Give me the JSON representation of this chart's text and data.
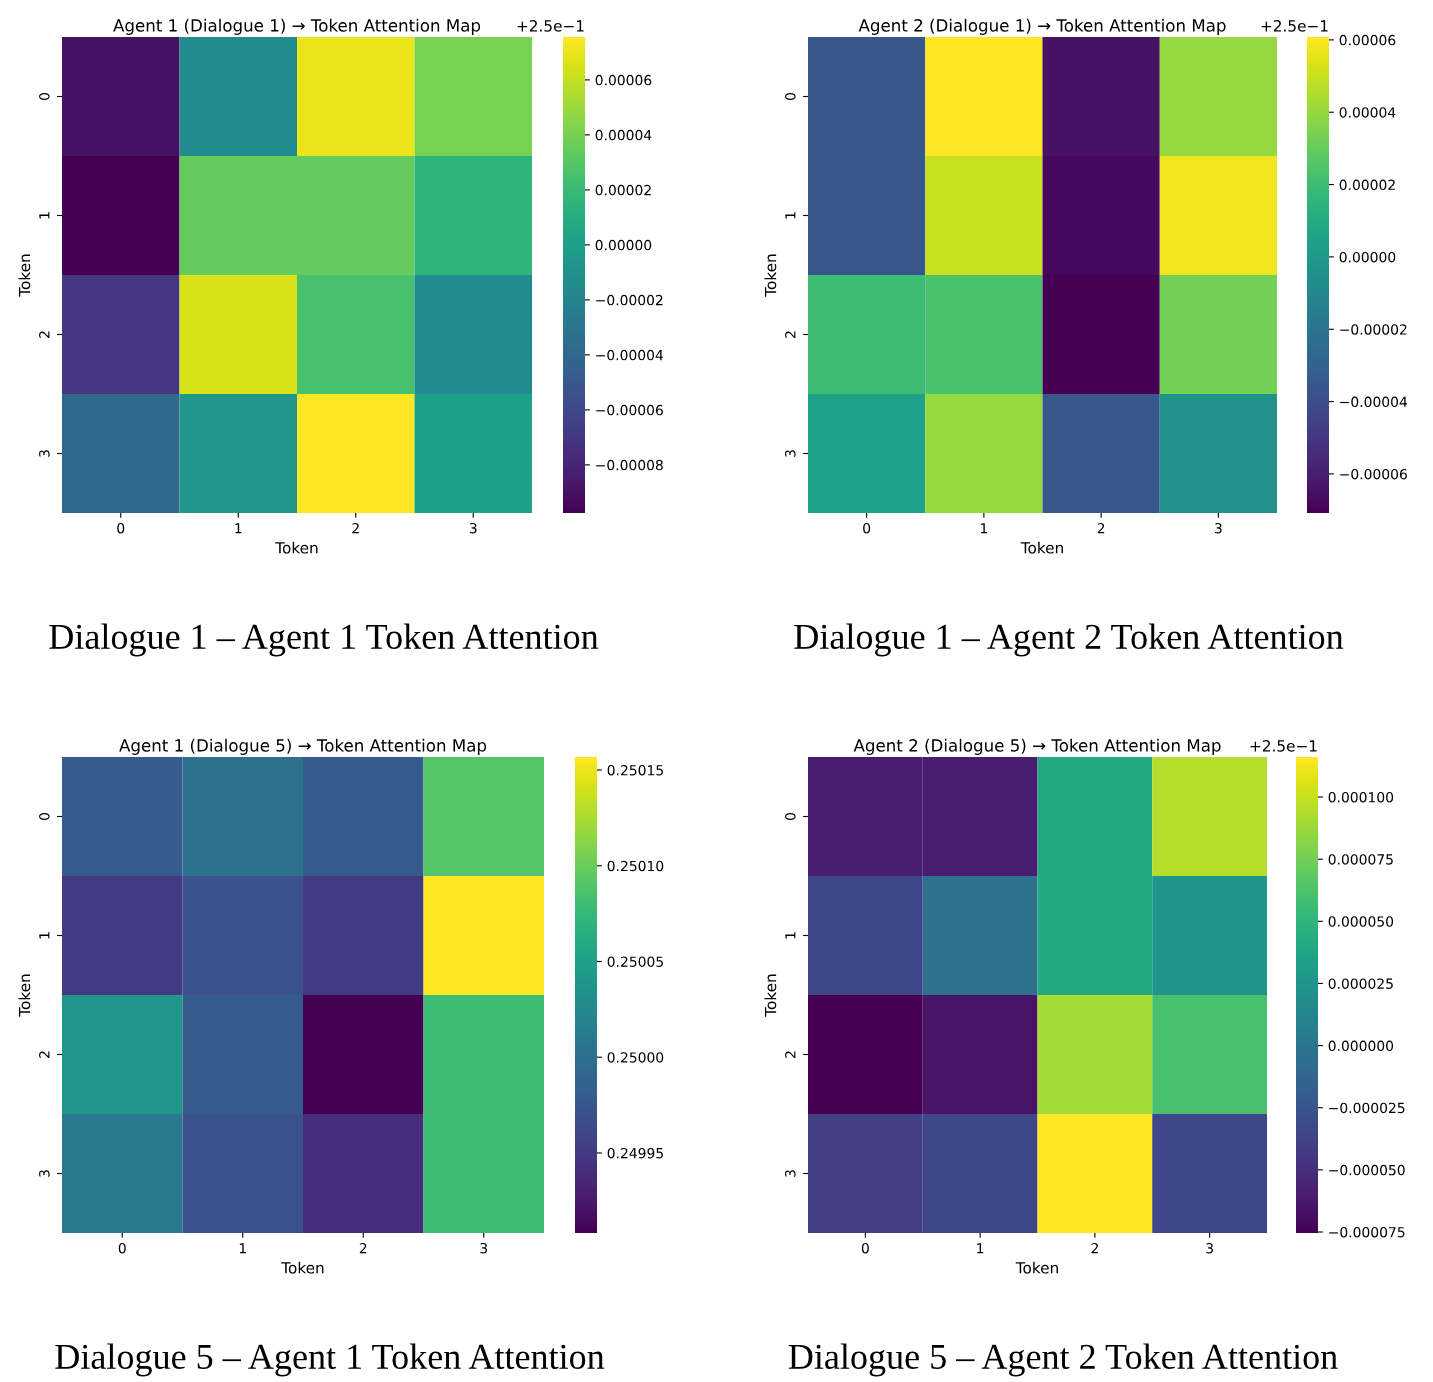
{
  "chart_data": [
    {
      "type": "heatmap",
      "title": "Agent 1 (Dialogue 1) → Token Attention Map",
      "xlabel": "Token",
      "ylabel": "Token",
      "categories": [
        "0",
        "1",
        "2",
        "3"
      ],
      "y_categories": [
        "0",
        "1",
        "2",
        "3"
      ],
      "cells": [
        [
          -9e-05,
          -1.5e-05,
          7e-05,
          4e-05
        ],
        [
          -9.75e-05,
          3.5e-05,
          3.5e-05,
          1.5e-05
        ],
        [
          -7e-05,
          6.5e-05,
          2.5e-05,
          -1.5e-05
        ],
        [
          -4e-05,
          -5e-06,
          7.56e-05,
          0.0
        ]
      ],
      "clim": [
        -9.75e-05,
        7.56e-05
      ],
      "cticks": [
        {
          "value": -8e-05,
          "label": "−0.00008"
        },
        {
          "value": -6e-05,
          "label": "−0.00006"
        },
        {
          "value": -4e-05,
          "label": "−0.00004"
        },
        {
          "value": -2e-05,
          "label": "−0.00002"
        },
        {
          "value": 0.0,
          "label": "0.00000"
        },
        {
          "value": 2e-05,
          "label": "0.00002"
        },
        {
          "value": 4e-05,
          "label": "0.00004"
        },
        {
          "value": 6e-05,
          "label": "0.00006"
        }
      ],
      "annotations": [
        "+2.5e−1",
        "Dialogue 1 – Agent 1 Token Attention"
      ]
    },
    {
      "type": "heatmap",
      "title": "Agent 2 (Dialogue 1) → Token Attention Map",
      "xlabel": "Token",
      "ylabel": "Token",
      "categories": [
        "0",
        "1",
        "2",
        "3"
      ],
      "y_categories": [
        "0",
        "1",
        "2",
        "3"
      ],
      "cells": [
        [
          -3.5e-05,
          6.08e-05,
          -6.5e-05,
          4e-05
        ],
        [
          -3.5e-05,
          5e-05,
          -6.8e-05,
          5.8e-05
        ],
        [
          2e-05,
          2.3e-05,
          -7.08e-05,
          3.3e-05
        ],
        [
          5e-06,
          4e-05,
          -3.5e-05,
          -5e-06
        ]
      ],
      "clim": [
        -7.08e-05,
        6.08e-05
      ],
      "cticks": [
        {
          "value": -6e-05,
          "label": "−0.00006"
        },
        {
          "value": -4e-05,
          "label": "−0.00004"
        },
        {
          "value": -2e-05,
          "label": "−0.00002"
        },
        {
          "value": 0.0,
          "label": "0.00000"
        },
        {
          "value": 2e-05,
          "label": "0.00002"
        },
        {
          "value": 4e-05,
          "label": "0.00004"
        },
        {
          "value": 6e-05,
          "label": "0.00006"
        }
      ],
      "annotations": [
        "+2.5e−1",
        "Dialogue 1 – Agent 2 Token Attention"
      ]
    },
    {
      "type": "heatmap",
      "title": "Agent 1 (Dialogue 5) → Token Attention Map",
      "xlabel": "Token",
      "ylabel": "Token",
      "categories": [
        "0",
        "1",
        "2",
        "3"
      ],
      "y_categories": [
        "0",
        "1",
        "2",
        "3"
      ],
      "cells": [
        [
          0.24998,
          0.25,
          0.24998,
          0.25009
        ],
        [
          0.24995,
          0.24997,
          0.24995,
          0.2501568
        ],
        [
          0.25004,
          0.24998,
          0.2499082,
          0.25008
        ],
        [
          0.25001,
          0.24997,
          0.24994,
          0.25008
        ]
      ],
      "clim": [
        0.2499082,
        0.2501568
      ],
      "cticks": [
        0.24995,
        {
          "value": 0.25,
          "label": "0.25000"
        },
        0.25005,
        {
          "value": 0.2501,
          "label": "0.25010"
        },
        0.25015
      ],
      "annotations": [
        "Dialogue 5 – Agent 1 Token Attention"
      ]
    },
    {
      "type": "heatmap",
      "title": "Agent 2 (Dialogue 5) → Token Attention Map",
      "xlabel": "Token",
      "ylabel": "Token",
      "categories": [
        "0",
        "1",
        "2",
        "3"
      ],
      "y_categories": [
        "0",
        "1",
        "2",
        "3"
      ],
      "cells": [
        [
          -6e-05,
          -6e-05,
          4e-05,
          9.5e-05
        ],
        [
          -3.5e-05,
          -5e-06,
          4e-05,
          2.5e-05
        ],
        [
          -7.54e-05,
          -6.5e-05,
          9e-05,
          6e-05
        ],
        [
          -4e-05,
          -3.5e-05,
          0.0001161,
          -3.5e-05
        ]
      ],
      "clim": [
        -7.54e-05,
        0.0001161
      ],
      "cticks": [
        {
          "value": -7.5e-05,
          "label": "−0.000075"
        },
        {
          "value": -5e-05,
          "label": "−0.000050"
        },
        {
          "value": -2.5e-05,
          "label": "−0.000025"
        },
        {
          "value": 0.0,
          "label": "0.000000"
        },
        {
          "value": 2.5e-05,
          "label": "0.000025"
        },
        {
          "value": 5e-05,
          "label": "0.000050"
        },
        {
          "value": 7.5e-05,
          "label": "0.000075"
        },
        {
          "value": 0.0001,
          "label": "0.000100"
        }
      ],
      "annotations": [
        "+2.5e−1",
        "Dialogue 5 – Agent 2 Token Attention"
      ]
    }
  ]
}
